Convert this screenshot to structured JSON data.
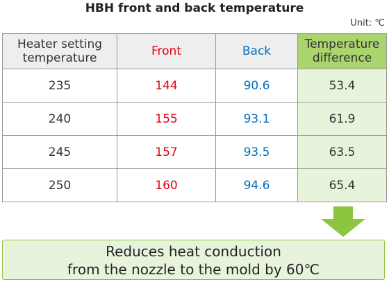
{
  "title": "HBH front and back temperature",
  "unit": "Unit: ℃",
  "table": {
    "header": [
      "Heater setting temperature",
      "Front",
      "Back",
      "Temperature difference"
    ],
    "rows": [
      [
        "235",
        "144",
        "90.6",
        "53.4"
      ],
      [
        "240",
        "155",
        "93.1",
        "61.9"
      ],
      [
        "245",
        "157",
        "93.5",
        "63.5"
      ],
      [
        "250",
        "160",
        "94.6",
        "65.4"
      ]
    ]
  },
  "callout": {
    "lines": [
      "Reduces heat conduction",
      "from the nozzle to the mold by 60℃"
    ]
  }
}
